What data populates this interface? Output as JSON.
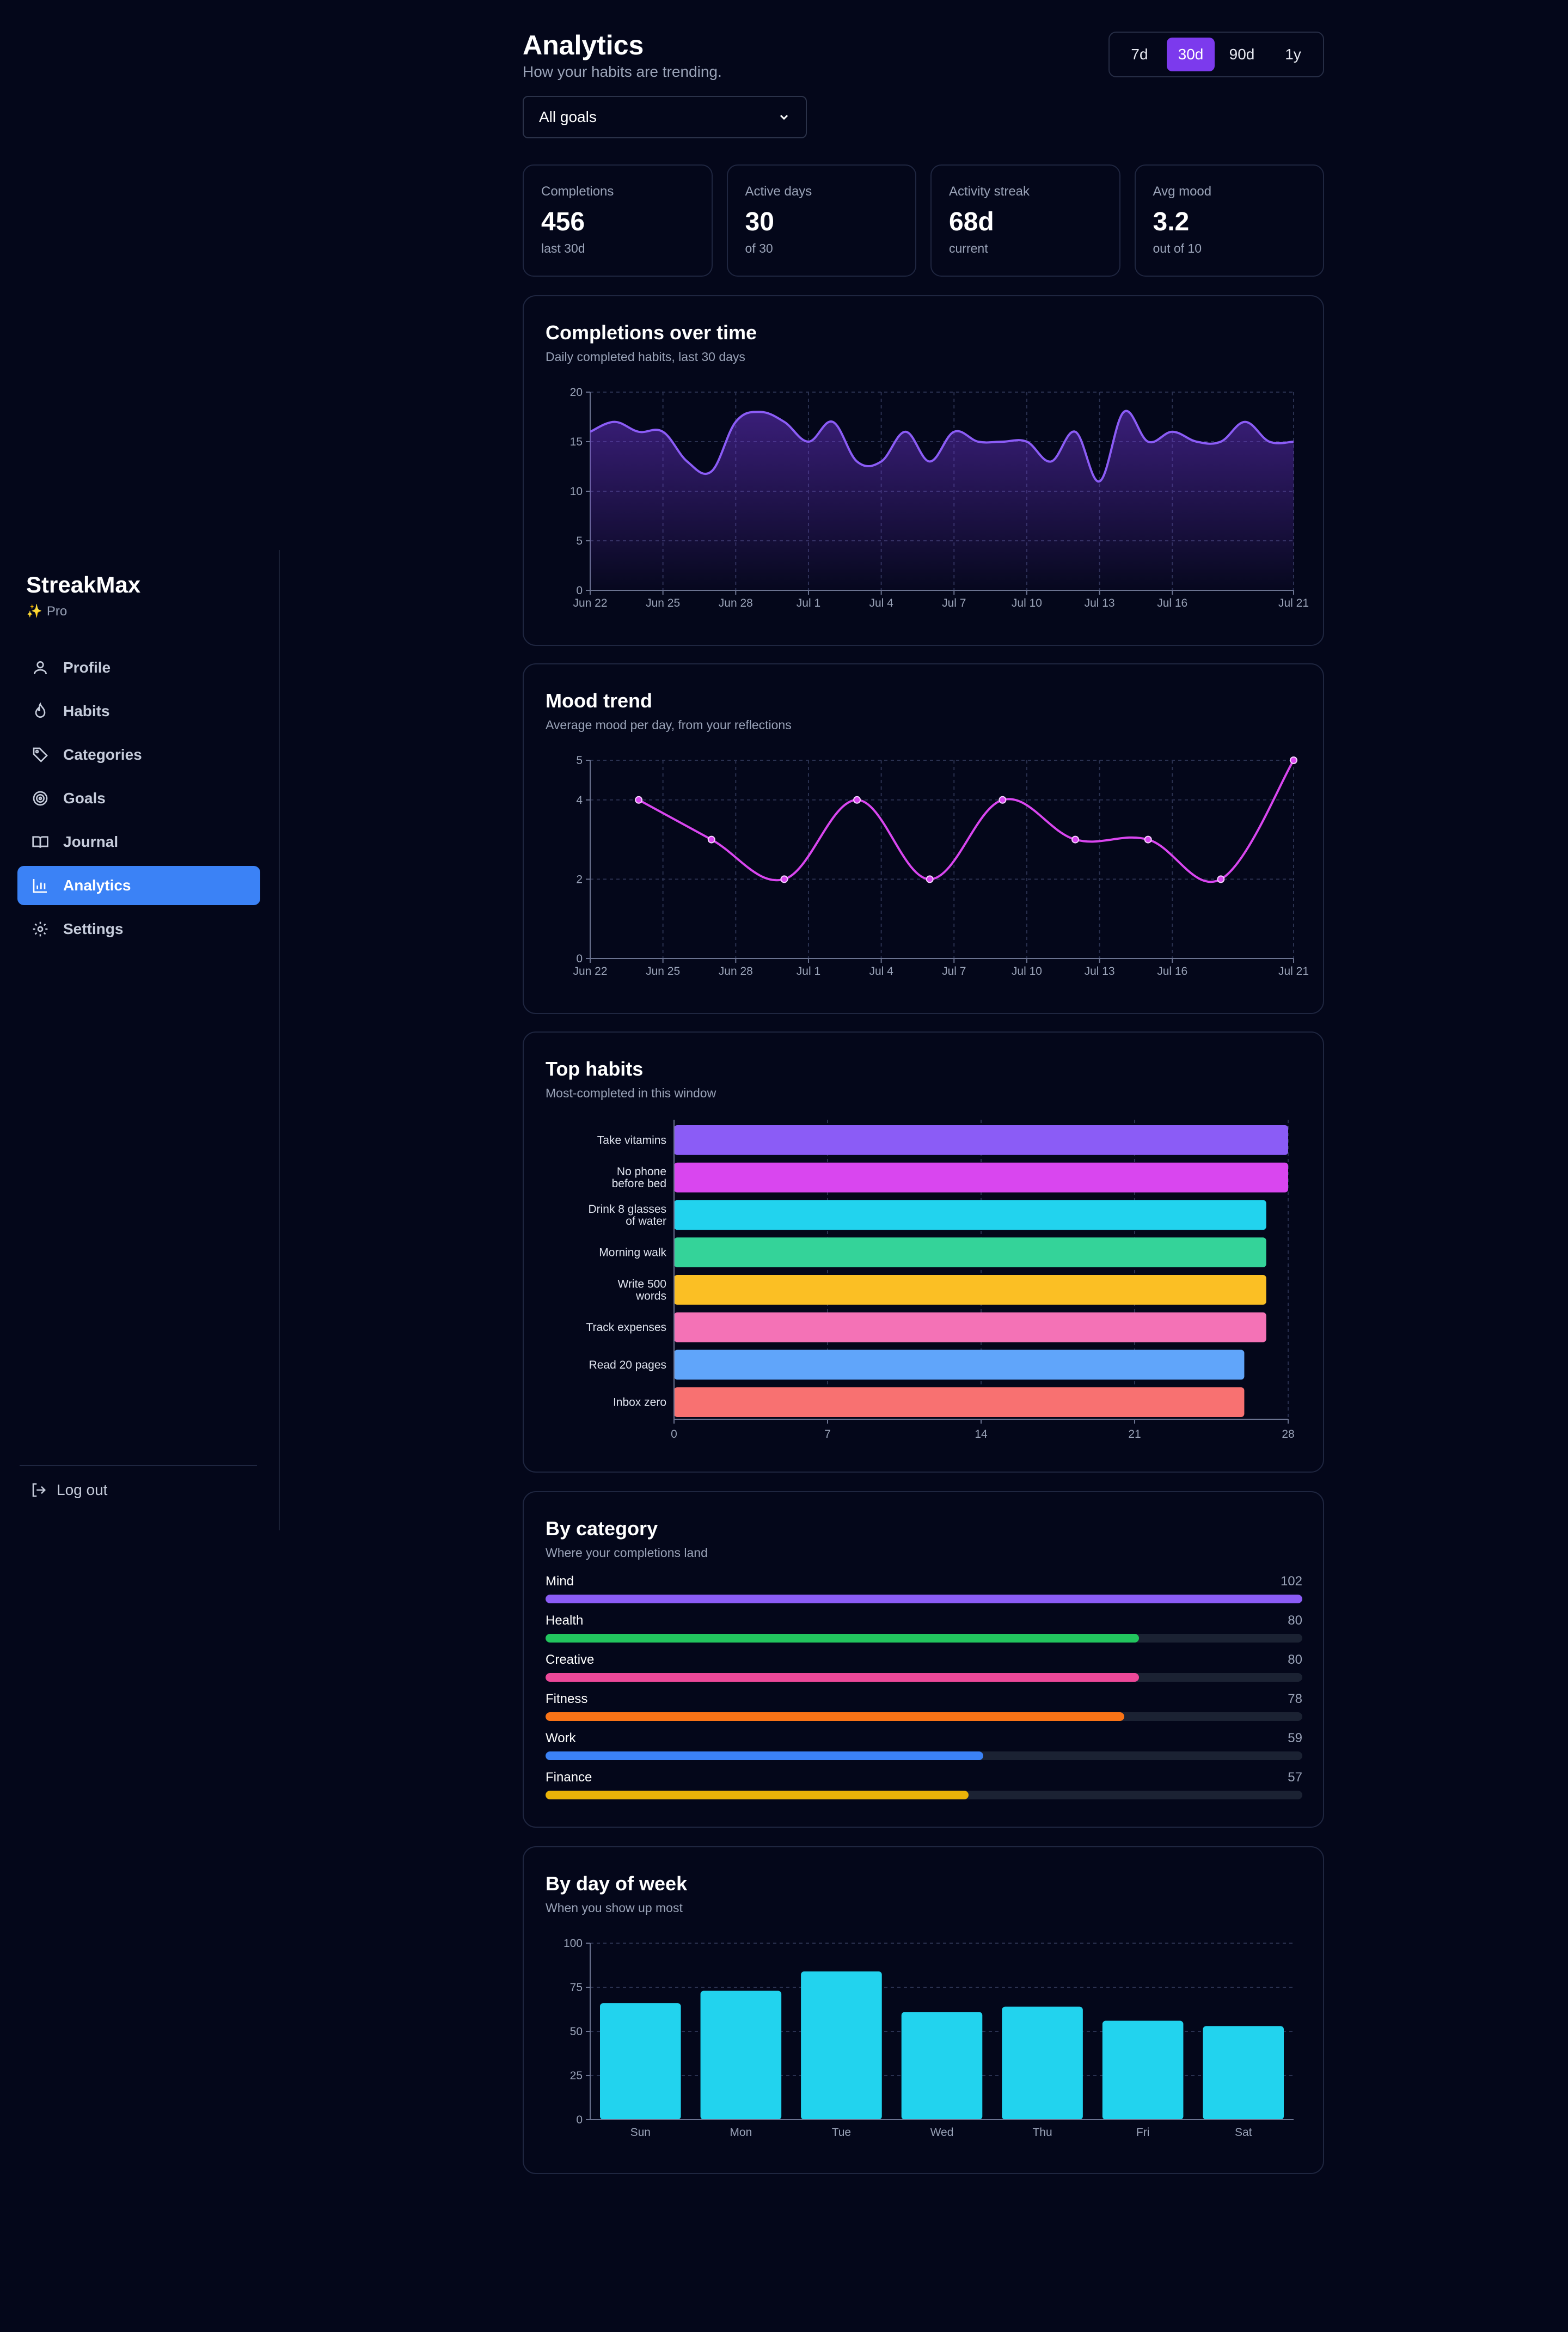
{
  "app": {
    "name": "StreakMax",
    "plan": "Pro",
    "plan_icon": "✨"
  },
  "nav": {
    "items": [
      {
        "label": "Profile",
        "icon": "user-icon"
      },
      {
        "label": "Habits",
        "icon": "flame-icon"
      },
      {
        "label": "Categories",
        "icon": "tag-icon"
      },
      {
        "label": "Goals",
        "icon": "target-icon"
      },
      {
        "label": "Journal",
        "icon": "book-icon"
      },
      {
        "label": "Analytics",
        "icon": "bar-chart-icon",
        "active": true
      },
      {
        "label": "Settings",
        "icon": "gear-icon"
      }
    ],
    "logout": "Log out"
  },
  "header": {
    "title": "Analytics",
    "subtitle": "How your habits are trending.",
    "ranges": [
      "7d",
      "30d",
      "90d",
      "1y"
    ],
    "active_range": "30d",
    "goal_filter": "All goals"
  },
  "stats": [
    {
      "label": "Completions",
      "value": "456",
      "sub": "last 30d"
    },
    {
      "label": "Active days",
      "value": "30",
      "sub": "of 30"
    },
    {
      "label": "Activity streak",
      "value": "68d",
      "sub": "current"
    },
    {
      "label": "Avg mood",
      "value": "3.2",
      "sub": "out of 10"
    }
  ],
  "cards": {
    "completions": {
      "title": "Completions over time",
      "subtitle": "Daily completed habits, last 30 days"
    },
    "mood": {
      "title": "Mood trend",
      "subtitle": "Average mood per day, from your reflections"
    },
    "top": {
      "title": "Top habits",
      "subtitle": "Most-completed in this window"
    },
    "category": {
      "title": "By category",
      "subtitle": "Where your completions land"
    },
    "dow": {
      "title": "By day of week",
      "subtitle": "When you show up most"
    }
  },
  "colors": {
    "accent": "#7c3aed",
    "active_nav": "#3b82f6",
    "area_line": "#8b5cf6",
    "mood_line": "#d946ef",
    "dow_bar": "#22d3ee"
  },
  "chart_data": [
    {
      "type": "area",
      "title": "Completions over time",
      "x_ticks": [
        "Jun 22",
        "Jun 25",
        "Jun 28",
        "Jul 1",
        "Jul 4",
        "Jul 7",
        "Jul 10",
        "Jul 13",
        "Jul 16",
        "Jul 21"
      ],
      "x": [
        "Jun 22",
        "Jun 23",
        "Jun 24",
        "Jun 25",
        "Jun 26",
        "Jun 27",
        "Jun 28",
        "Jun 29",
        "Jun 30",
        "Jul 1",
        "Jul 2",
        "Jul 3",
        "Jul 4",
        "Jul 5",
        "Jul 6",
        "Jul 7",
        "Jul 8",
        "Jul 9",
        "Jul 10",
        "Jul 11",
        "Jul 12",
        "Jul 13",
        "Jul 14",
        "Jul 15",
        "Jul 16",
        "Jul 17",
        "Jul 18",
        "Jul 19",
        "Jul 20",
        "Jul 21"
      ],
      "values": [
        16,
        17,
        16,
        16,
        13,
        12,
        17,
        18,
        17,
        15,
        17,
        13,
        13,
        16,
        13,
        16,
        15,
        15,
        15,
        13,
        16,
        11,
        18,
        15,
        16,
        15,
        15,
        17,
        15,
        15
      ],
      "ylim": [
        0,
        20
      ],
      "y_ticks": [
        0,
        5,
        10,
        15,
        20
      ],
      "grid": true
    },
    {
      "type": "line",
      "title": "Mood trend",
      "x_ticks": [
        "Jun 22",
        "Jun 25",
        "Jun 28",
        "Jul 1",
        "Jul 4",
        "Jul 7",
        "Jul 10",
        "Jul 13",
        "Jul 16",
        "Jul 21"
      ],
      "x": [
        "Jun 24",
        "Jun 27",
        "Jun 30",
        "Jul 3",
        "Jul 6",
        "Jul 9",
        "Jul 12",
        "Jul 15",
        "Jul 18",
        "Jul 21"
      ],
      "values": [
        4,
        3,
        2,
        4,
        2,
        4,
        3,
        3,
        2,
        5
      ],
      "ylim": [
        0,
        5
      ],
      "y_ticks": [
        0,
        2,
        4,
        5
      ],
      "grid": true
    },
    {
      "type": "bar",
      "orientation": "horizontal",
      "title": "Top habits",
      "categories": [
        "Take vitamins",
        "No phone before bed",
        "Drink 8 glasses of water",
        "Morning walk",
        "Write 500 words",
        "Track expenses",
        "Read 20 pages",
        "Inbox zero"
      ],
      "category_lines": [
        [
          "Take vitamins"
        ],
        [
          "No phone",
          "before bed"
        ],
        [
          "Drink 8 glasses",
          "of water"
        ],
        [
          "Morning walk"
        ],
        [
          "Write 500",
          "words"
        ],
        [
          "Track expenses"
        ],
        [
          "Read 20 pages"
        ],
        [
          "Inbox zero"
        ]
      ],
      "values": [
        28,
        28,
        27,
        27,
        27,
        27,
        26,
        26
      ],
      "colors": [
        "#8b5cf6",
        "#d946ef",
        "#22d3ee",
        "#34d399",
        "#fbbf24",
        "#f472b6",
        "#60a5fa",
        "#f87171"
      ],
      "xlim": [
        0,
        28
      ],
      "x_ticks": [
        0,
        7,
        14,
        21,
        28
      ]
    },
    {
      "type": "bar",
      "orientation": "horizontal-progress",
      "title": "By category",
      "categories": [
        "Mind",
        "Health",
        "Creative",
        "Fitness",
        "Work",
        "Finance"
      ],
      "values": [
        102,
        80,
        80,
        78,
        59,
        57
      ],
      "max": 102,
      "colors": [
        "#8b5cf6",
        "#22c55e",
        "#ec4899",
        "#f97316",
        "#3b82f6",
        "#eab308"
      ]
    },
    {
      "type": "bar",
      "title": "By day of week",
      "categories": [
        "Sun",
        "Mon",
        "Tue",
        "Wed",
        "Thu",
        "Fri",
        "Sat"
      ],
      "values": [
        66,
        73,
        84,
        61,
        64,
        56,
        53
      ],
      "ylim": [
        0,
        100
      ],
      "y_ticks": [
        0,
        25,
        50,
        75,
        100
      ]
    }
  ]
}
